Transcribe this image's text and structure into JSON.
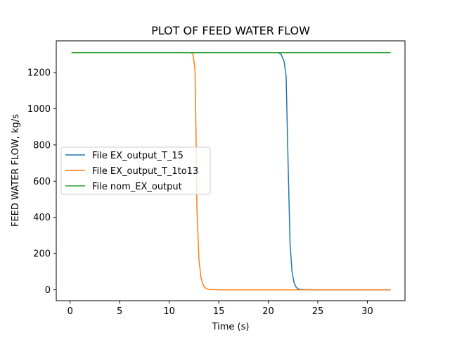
{
  "chart_data": {
    "type": "line",
    "title": "PLOT OF FEED WATER FLOW",
    "xlabel": "Time (s)",
    "ylabel": "FEED WATER FLOW, kg/s",
    "xlim": [
      -1.4,
      33.8
    ],
    "ylim": [
      -60,
      1375
    ],
    "xticks": [
      0,
      5,
      10,
      15,
      20,
      25,
      30
    ],
    "yticks": [
      0,
      200,
      400,
      600,
      800,
      1000,
      1200
    ],
    "grid": false,
    "legend_position": "center-left",
    "series": [
      {
        "name": "File EX_output_T_15",
        "color": "#1f77b4",
        "x": [
          0.2,
          5,
          10,
          15,
          20,
          21.0,
          21.3,
          21.6,
          21.8,
          22.0,
          22.2,
          22.4,
          22.6,
          22.8,
          23.0,
          23.3,
          23.7,
          25,
          30,
          32.3
        ],
        "y": [
          1310,
          1310,
          1310,
          1310,
          1310,
          1310,
          1300,
          1260,
          1180,
          700,
          250,
          100,
          40,
          15,
          5,
          2,
          1,
          0,
          0,
          0
        ]
      },
      {
        "name": "File EX_output_T_1to13",
        "color": "#ff7f0e",
        "x": [
          0.2,
          5,
          10,
          12.2,
          12.4,
          12.6,
          12.7,
          12.8,
          13.0,
          13.2,
          13.4,
          13.6,
          13.8,
          14.0,
          14.5,
          15,
          20,
          25,
          30,
          32.3
        ],
        "y": [
          1310,
          1310,
          1310,
          1310,
          1300,
          1220,
          900,
          450,
          170,
          70,
          30,
          12,
          5,
          2,
          1,
          0,
          0,
          0,
          0,
          0
        ]
      },
      {
        "name": "File nom_EX_output",
        "color": "#2ca02c",
        "x": [
          0.2,
          5,
          10,
          15,
          20,
          25,
          30,
          32.3
        ],
        "y": [
          1310,
          1310,
          1310,
          1310,
          1310,
          1310,
          1310,
          1310
        ]
      }
    ]
  }
}
